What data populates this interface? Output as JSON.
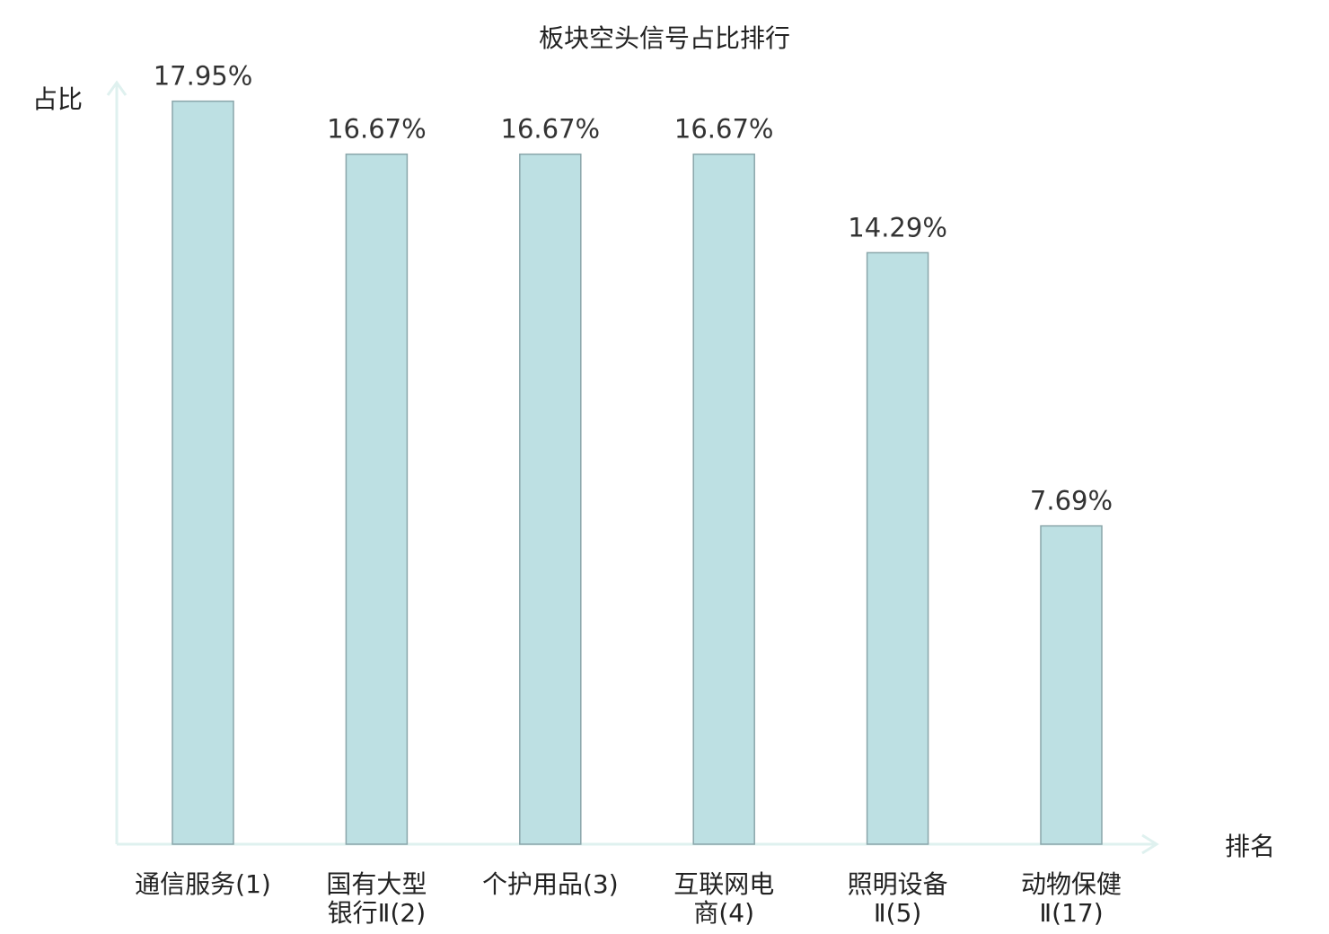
{
  "chart_data": {
    "type": "bar",
    "title": "板块空头信号占比排行",
    "xlabel": "排名",
    "ylabel": "占比",
    "ylim": [
      0,
      18.4
    ],
    "grid": false,
    "legend": "none",
    "categories": [
      [
        "通信服务(1)"
      ],
      [
        "国有大型",
        "银行Ⅱ(2)"
      ],
      [
        "个护用品(3)"
      ],
      [
        "互联网电",
        "商(4)"
      ],
      [
        "照明设备",
        "Ⅱ(5)"
      ],
      [
        "动物保健",
        "Ⅱ(17)"
      ]
    ],
    "values": [
      17.95,
      16.67,
      16.67,
      16.67,
      14.29,
      7.69
    ],
    "value_labels": [
      "17.95%",
      "16.67%",
      "16.67%",
      "16.67%",
      "14.29%",
      "7.69%"
    ],
    "highlight_index": 5,
    "colors": {
      "bar_fill": "#bde0e3",
      "bar_stroke": "#8aa6aa",
      "axis": "#dff1ef",
      "text": "#222222",
      "highlight_text": "#e8141c"
    }
  }
}
